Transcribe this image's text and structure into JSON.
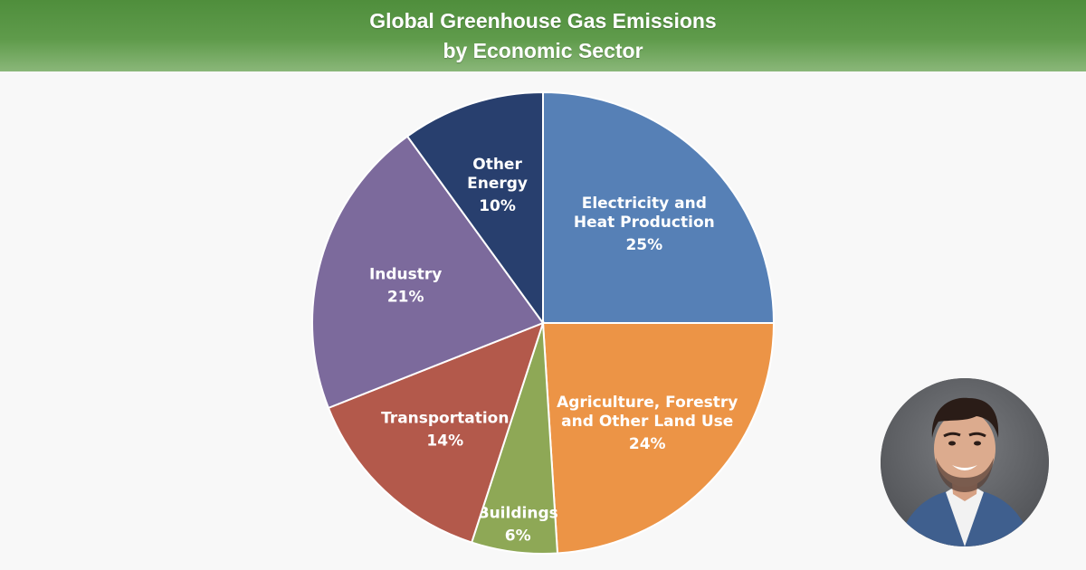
{
  "header": {
    "title_line1": "Global Greenhouse Gas Emissions",
    "title_line2": "by Economic Sector"
  },
  "chart_data": {
    "type": "pie",
    "title": "Global Greenhouse Gas Emissions by Economic Sector",
    "start": "12 o'clock",
    "direction": "clockwise",
    "slices": [
      {
        "label_lines": [
          "Electricity and",
          "Heat Production"
        ],
        "value": 25,
        "value_label": "25%",
        "color": "#5680b6"
      },
      {
        "label_lines": [
          "Agriculture, Forestry",
          "and Other Land Use"
        ],
        "value": 24,
        "value_label": "24%",
        "color": "#ec9446"
      },
      {
        "label_lines": [
          "Buildings"
        ],
        "value": 6,
        "value_label": "6%",
        "color": "#8ea856"
      },
      {
        "label_lines": [
          "Transportation"
        ],
        "value": 14,
        "value_label": "14%",
        "color": "#b3594b"
      },
      {
        "label_lines": [
          "Industry"
        ],
        "value": 21,
        "value_label": "21%",
        "color": "#7c6a9c"
      },
      {
        "label_lines": [
          "Other",
          "Energy"
        ],
        "value": 10,
        "value_label": "10%",
        "color": "#283f6e"
      }
    ]
  },
  "presenter": {
    "icon": "presenter-avatar-photo"
  }
}
